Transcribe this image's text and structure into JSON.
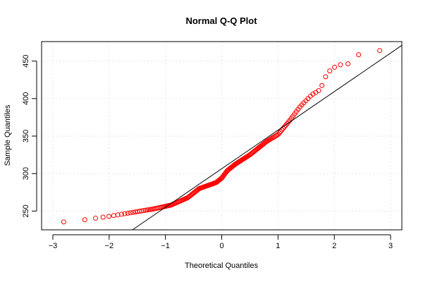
{
  "chart_data": {
    "type": "scatter",
    "title": "Normal Q-Q Plot",
    "xlabel": "Theoretical Quantiles",
    "ylabel": "Sample Quantiles",
    "xlim": [
      -3.2,
      3.2
    ],
    "ylim": [
      225,
      476
    ],
    "x_ticks": [
      -3,
      -2,
      -1,
      0,
      1,
      2,
      3
    ],
    "y_ticks": [
      250,
      300,
      350,
      400,
      450
    ],
    "x_tick_labels": [
      "−3",
      "−2",
      "−1",
      "0",
      "1",
      "2",
      "3"
    ],
    "y_tick_labels": [
      "250",
      "300",
      "350",
      "400",
      "450"
    ],
    "grid": true,
    "point_color": "#ff0000",
    "line_color": "#000000",
    "grid_color": "#e6e6e6",
    "reference_line": {
      "slope": 51.4,
      "intercept": 306.5
    },
    "points_summary": "sample quantiles against theoretical normal quantiles, n = 200",
    "n": 200,
    "control_points": [
      [
        -3.0,
        235
      ],
      [
        -2.65,
        236
      ],
      [
        -2.3,
        240
      ],
      [
        -2.0,
        243
      ],
      [
        -1.6,
        248
      ],
      [
        -1.2,
        253
      ],
      [
        -0.9,
        258
      ],
      [
        -0.6,
        268
      ],
      [
        -0.4,
        280
      ],
      [
        -0.1,
        288
      ],
      [
        0.0,
        294
      ],
      [
        0.1,
        304
      ],
      [
        0.25,
        313
      ],
      [
        0.5,
        325
      ],
      [
        0.8,
        343
      ],
      [
        1.0,
        352
      ],
      [
        1.2,
        370
      ],
      [
        1.4,
        390
      ],
      [
        1.6,
        405
      ],
      [
        1.75,
        412
      ],
      [
        1.85,
        430
      ],
      [
        1.95,
        440
      ],
      [
        2.1,
        445
      ],
      [
        2.3,
        447
      ],
      [
        2.45,
        460
      ],
      [
        2.62,
        462
      ],
      [
        3.0,
        466
      ]
    ]
  }
}
